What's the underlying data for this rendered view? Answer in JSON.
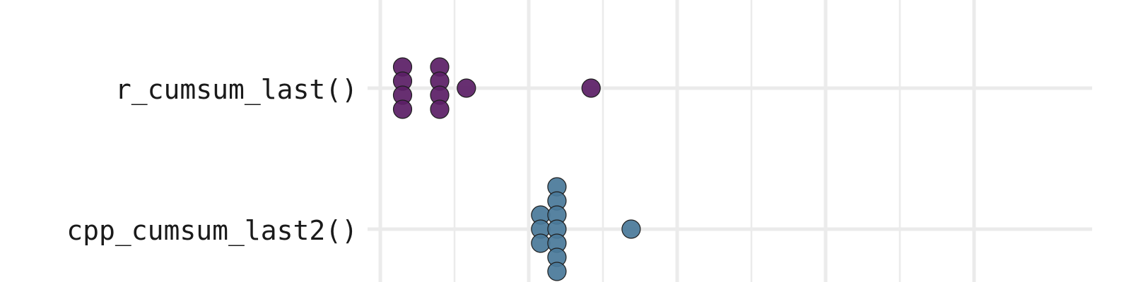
{
  "chart_data": {
    "type": "scatter",
    "subtype": "beeswarm",
    "title": "",
    "xlabel": "",
    "ylabel": "",
    "categories": [
      "r_cumsum_last()",
      "cpp_cumsum_last2()"
    ],
    "grid": true,
    "legend": "none",
    "series": [
      {
        "category": "r_cumsum_last()",
        "color": "#5b1f66",
        "points": [
          {
            "x": 0.15,
            "stack": -1.5
          },
          {
            "x": 0.15,
            "stack": -0.5
          },
          {
            "x": 0.15,
            "stack": 0.5
          },
          {
            "x": 0.15,
            "stack": 1.5
          },
          {
            "x": 0.4,
            "stack": -1.5
          },
          {
            "x": 0.4,
            "stack": -0.5
          },
          {
            "x": 0.4,
            "stack": 0.5
          },
          {
            "x": 0.4,
            "stack": 1.5
          },
          {
            "x": 0.58,
            "stack": 0
          },
          {
            "x": 1.42,
            "stack": 0
          }
        ]
      },
      {
        "category": "cpp_cumsum_last2()",
        "color": "#4a7a9a",
        "points": [
          {
            "x": 1.08,
            "stack": -1
          },
          {
            "x": 1.08,
            "stack": 0
          },
          {
            "x": 1.08,
            "stack": 1
          },
          {
            "x": 1.19,
            "stack": -3
          },
          {
            "x": 1.19,
            "stack": -2
          },
          {
            "x": 1.19,
            "stack": -1
          },
          {
            "x": 1.19,
            "stack": 0
          },
          {
            "x": 1.19,
            "stack": 1
          },
          {
            "x": 1.19,
            "stack": 2
          },
          {
            "x": 1.19,
            "stack": 3
          },
          {
            "x": 1.69,
            "stack": 0
          }
        ]
      }
    ]
  }
}
